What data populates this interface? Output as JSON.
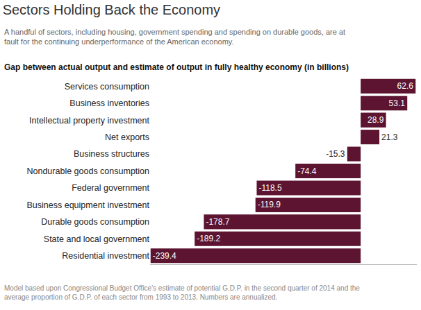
{
  "chart_data": {
    "type": "bar",
    "orientation": "horizontal",
    "title": "Sectors Holding Back the Economy",
    "subtitle": "A handful of sectors, including housing, government spending and spending on durable goods, are at fault for the continuing underperformance of the American economy.",
    "x_label": "Gap between actual output and estimate of output in fully healthy economy (in billions)",
    "note": "Model based upon Congressional Budget Office's estimate of potential G.D.P. in the second quarter of 2014 and the average proportion of G.D.P. of each sector from 1993 to 2013. Numbers are annualized.",
    "categories": [
      "Services consumption",
      "Business inventories",
      "Intellectual property investment",
      "Net exports",
      "Business structures",
      "Nondurable goods consumption",
      "Federal government",
      "Business equipment investment",
      "Durable goods consumption",
      "State and local government",
      "Residential investment"
    ],
    "values": [
      62.6,
      53.1,
      28.9,
      21.3,
      -15.3,
      -74.4,
      -118.5,
      -119.9,
      -178.7,
      -189.2,
      -239.4
    ],
    "color": "#5c1430",
    "xlim": [
      -240,
      64
    ],
    "grid": false,
    "data_labels": true,
    "tick_labels": "y"
  }
}
